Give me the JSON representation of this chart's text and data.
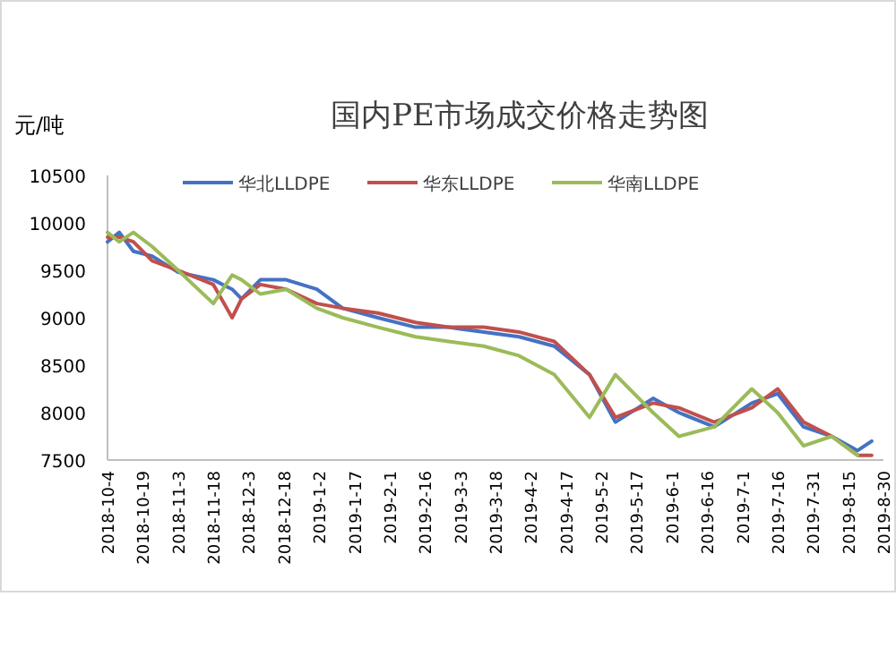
{
  "chart_data": {
    "type": "line",
    "title": "国内PE市场成交价格走势图",
    "ylabel": "元/吨",
    "legend": "top",
    "grid": false,
    "xlim": [
      "2018-10-04",
      "2019-08-30"
    ],
    "xticks": [
      {
        "value": "2018-10-04",
        "label": "2018-10-4"
      },
      {
        "value": "2018-10-19",
        "label": "2018-10-19"
      },
      {
        "value": "2018-11-03",
        "label": "2018-11-3"
      },
      {
        "value": "2018-11-18",
        "label": "2018-11-18"
      },
      {
        "value": "2018-12-03",
        "label": "2018-12-3"
      },
      {
        "value": "2018-12-18",
        "label": "2018-12-18"
      },
      {
        "value": "2019-01-02",
        "label": "2019-1-2"
      },
      {
        "value": "2019-01-17",
        "label": "2019-1-17"
      },
      {
        "value": "2019-02-01",
        "label": "2019-2-1"
      },
      {
        "value": "2019-02-16",
        "label": "2019-2-16"
      },
      {
        "value": "2019-03-03",
        "label": "2019-3-3"
      },
      {
        "value": "2019-03-18",
        "label": "2019-3-18"
      },
      {
        "value": "2019-04-02",
        "label": "2019-4-2"
      },
      {
        "value": "2019-04-17",
        "label": "2019-4-17"
      },
      {
        "value": "2019-05-02",
        "label": "2019-5-2"
      },
      {
        "value": "2019-05-17",
        "label": "2019-5-17"
      },
      {
        "value": "2019-06-01",
        "label": "2019-6-1"
      },
      {
        "value": "2019-06-16",
        "label": "2019-6-16"
      },
      {
        "value": "2019-07-01",
        "label": "2019-7-1"
      },
      {
        "value": "2019-07-16",
        "label": "2019-7-16"
      },
      {
        "value": "2019-07-31",
        "label": "2019-7-31"
      },
      {
        "value": "2019-08-15",
        "label": "2019-8-15"
      },
      {
        "value": "2019-08-30",
        "label": "2019-8-30"
      }
    ],
    "ylim": [
      7500,
      10500
    ],
    "yticks": [
      7500,
      8000,
      8500,
      9000,
      9500,
      10000,
      10500
    ],
    "x": [
      "2018-10-04",
      "2018-10-09",
      "2018-10-15",
      "2018-10-23",
      "2018-11-03",
      "2018-11-18",
      "2018-11-26",
      "2018-11-30",
      "2018-12-08",
      "2018-12-19",
      "2019-01-01",
      "2019-01-12",
      "2019-01-27",
      "2019-02-12",
      "2019-02-26",
      "2019-03-13",
      "2019-03-28",
      "2019-04-12",
      "2019-04-27",
      "2019-05-08",
      "2019-05-24",
      "2019-06-04",
      "2019-06-19",
      "2019-07-05",
      "2019-07-16",
      "2019-07-27",
      "2019-08-08",
      "2019-08-19",
      "2019-08-25"
    ],
    "series": [
      {
        "name": "华北LLDPE",
        "color": "#4472c4",
        "values": [
          9800,
          9900,
          9700,
          9650,
          9480,
          9400,
          9300,
          9200,
          9400,
          9400,
          9300,
          9100,
          9000,
          8900,
          8900,
          8850,
          8800,
          8700,
          8400,
          7900,
          8150,
          8000,
          7850,
          8100,
          8200,
          7850,
          7750,
          7600,
          7700
        ]
      },
      {
        "name": "华东LLDPE",
        "color": "#c0504d",
        "values": [
          9850,
          9850,
          9800,
          9600,
          9500,
          9350,
          9000,
          9200,
          9350,
          9300,
          9150,
          9100,
          9050,
          8950,
          8900,
          8900,
          8850,
          8750,
          8400,
          7950,
          8100,
          8050,
          7900,
          8050,
          8250,
          7900,
          7750,
          7550,
          7550
        ]
      },
      {
        "name": "华南LLDPE",
        "color": "#9bbb59",
        "values": [
          9900,
          9800,
          9900,
          9750,
          9500,
          9150,
          9450,
          9400,
          9250,
          9300,
          9100,
          9000,
          8900,
          8800,
          8750,
          8700,
          8600,
          8400,
          7950,
          8400,
          8000,
          7750,
          7850,
          8250,
          8000,
          7650,
          7750,
          7550,
          null
        ]
      }
    ]
  }
}
